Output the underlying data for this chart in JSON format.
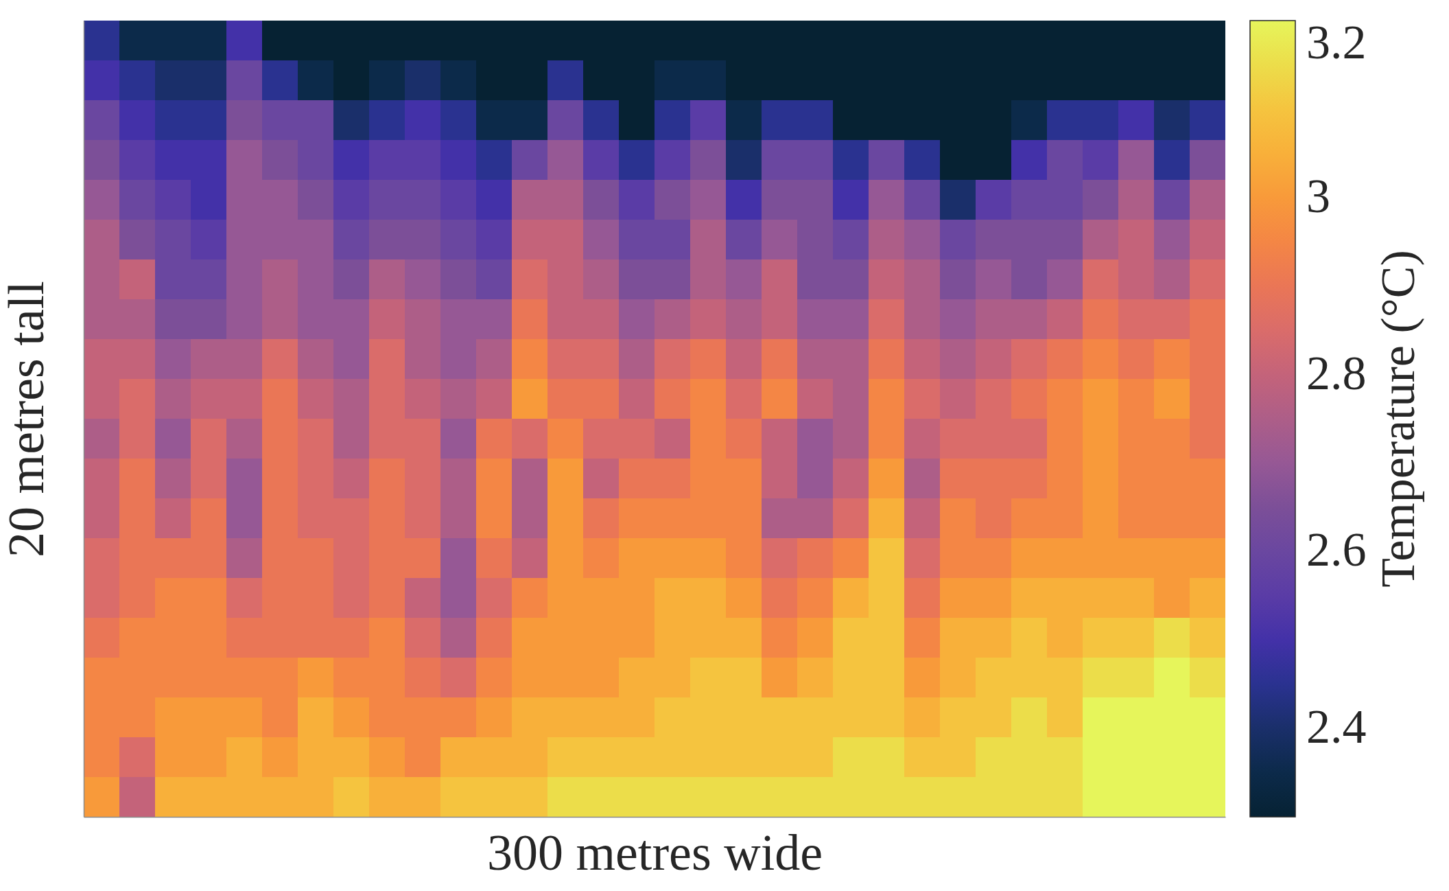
{
  "chart_data": {
    "type": "heatmap",
    "xlabel": "300 metres wide",
    "ylabel": "20 metres tall",
    "clabel": "Temperature (°C)",
    "tick_labels": false,
    "categories": [
      null,
      null,
      null,
      null,
      null,
      null,
      null,
      null,
      null,
      null,
      null,
      null,
      null,
      null,
      null,
      null,
      null,
      null,
      null,
      null,
      null,
      null,
      null,
      null,
      null,
      null,
      null,
      null,
      null,
      null,
      null,
      null
    ],
    "y_categories": [
      null,
      null,
      null,
      null,
      null,
      null,
      null,
      null,
      null,
      null,
      null,
      null,
      null,
      null,
      null,
      null,
      null,
      null,
      null,
      null
    ],
    "clim": [
      2.3,
      3.2
    ],
    "cticks": [
      2.4,
      2.6,
      2.8,
      3,
      3.2
    ],
    "cells": [
      [
        2.45,
        2.35,
        2.35,
        2.35,
        2.5,
        2.3,
        2.3,
        2.3,
        2.3,
        2.3,
        2.3,
        2.3,
        2.3,
        2.3,
        2.3,
        2.3,
        2.3,
        2.3,
        2.3,
        2.3,
        2.3,
        2.3,
        2.3,
        2.3,
        2.3,
        2.3,
        2.3,
        2.3,
        2.3,
        2.3,
        2.3,
        2.3
      ],
      [
        2.5,
        2.45,
        2.4,
        2.4,
        2.6,
        2.45,
        2.35,
        2.3,
        2.35,
        2.4,
        2.35,
        2.3,
        2.3,
        2.45,
        2.3,
        2.3,
        2.35,
        2.35,
        2.3,
        2.3,
        2.3,
        2.3,
        2.3,
        2.3,
        2.3,
        2.3,
        2.3,
        2.3,
        2.3,
        2.3,
        2.3,
        2.3
      ],
      [
        2.6,
        2.5,
        2.45,
        2.45,
        2.65,
        2.6,
        2.6,
        2.4,
        2.45,
        2.5,
        2.45,
        2.35,
        2.35,
        2.6,
        2.45,
        2.3,
        2.45,
        2.55,
        2.35,
        2.45,
        2.45,
        2.3,
        2.3,
        2.3,
        2.3,
        2.3,
        2.35,
        2.45,
        2.45,
        2.5,
        2.4,
        2.45
      ],
      [
        2.65,
        2.55,
        2.5,
        2.5,
        2.7,
        2.65,
        2.6,
        2.5,
        2.55,
        2.55,
        2.5,
        2.45,
        2.6,
        2.7,
        2.55,
        2.45,
        2.55,
        2.65,
        2.4,
        2.6,
        2.6,
        2.45,
        2.6,
        2.45,
        2.3,
        2.3,
        2.5,
        2.6,
        2.55,
        2.7,
        2.45,
        2.65
      ],
      [
        2.7,
        2.6,
        2.55,
        2.5,
        2.7,
        2.7,
        2.65,
        2.55,
        2.6,
        2.6,
        2.55,
        2.5,
        2.75,
        2.75,
        2.65,
        2.55,
        2.65,
        2.7,
        2.5,
        2.65,
        2.65,
        2.5,
        2.7,
        2.6,
        2.4,
        2.55,
        2.6,
        2.6,
        2.65,
        2.75,
        2.6,
        2.75
      ],
      [
        2.75,
        2.65,
        2.6,
        2.55,
        2.7,
        2.7,
        2.7,
        2.6,
        2.65,
        2.65,
        2.6,
        2.55,
        2.8,
        2.8,
        2.7,
        2.6,
        2.6,
        2.75,
        2.6,
        2.7,
        2.65,
        2.6,
        2.75,
        2.7,
        2.6,
        2.65,
        2.65,
        2.65,
        2.75,
        2.8,
        2.7,
        2.8
      ],
      [
        2.75,
        2.8,
        2.6,
        2.6,
        2.7,
        2.75,
        2.7,
        2.65,
        2.75,
        2.7,
        2.65,
        2.6,
        2.85,
        2.8,
        2.75,
        2.65,
        2.65,
        2.75,
        2.7,
        2.8,
        2.65,
        2.65,
        2.8,
        2.75,
        2.65,
        2.7,
        2.65,
        2.7,
        2.85,
        2.8,
        2.75,
        2.85
      ],
      [
        2.75,
        2.75,
        2.65,
        2.65,
        2.7,
        2.75,
        2.7,
        2.7,
        2.8,
        2.75,
        2.7,
        2.7,
        2.9,
        2.8,
        2.8,
        2.7,
        2.75,
        2.8,
        2.75,
        2.8,
        2.7,
        2.7,
        2.85,
        2.75,
        2.7,
        2.75,
        2.75,
        2.8,
        2.9,
        2.85,
        2.85,
        2.9
      ],
      [
        2.8,
        2.8,
        2.7,
        2.75,
        2.75,
        2.85,
        2.75,
        2.7,
        2.85,
        2.75,
        2.7,
        2.75,
        2.95,
        2.85,
        2.85,
        2.75,
        2.85,
        2.9,
        2.8,
        2.9,
        2.75,
        2.75,
        2.9,
        2.8,
        2.75,
        2.8,
        2.85,
        2.9,
        2.95,
        2.9,
        2.95,
        2.9
      ],
      [
        2.8,
        2.85,
        2.75,
        2.8,
        2.8,
        2.9,
        2.8,
        2.75,
        2.85,
        2.8,
        2.75,
        2.8,
        3.0,
        2.9,
        2.9,
        2.8,
        2.9,
        2.95,
        2.85,
        2.95,
        2.8,
        2.75,
        2.95,
        2.85,
        2.8,
        2.85,
        2.9,
        2.95,
        3.0,
        2.95,
        3.0,
        2.9
      ],
      [
        2.75,
        2.85,
        2.7,
        2.85,
        2.75,
        2.9,
        2.85,
        2.75,
        2.85,
        2.85,
        2.7,
        2.9,
        2.85,
        2.95,
        2.85,
        2.85,
        2.8,
        2.95,
        2.9,
        2.8,
        2.7,
        2.75,
        2.95,
        2.8,
        2.85,
        2.85,
        2.85,
        2.95,
        3.0,
        2.95,
        2.95,
        2.9
      ],
      [
        2.8,
        2.9,
        2.75,
        2.85,
        2.7,
        2.9,
        2.85,
        2.8,
        2.9,
        2.85,
        2.75,
        2.95,
        2.75,
        3.0,
        2.8,
        2.9,
        2.9,
        2.95,
        2.95,
        2.8,
        2.7,
        2.8,
        3.0,
        2.75,
        2.9,
        2.9,
        2.9,
        2.95,
        3.0,
        2.95,
        2.95,
        2.95
      ],
      [
        2.8,
        2.9,
        2.8,
        2.9,
        2.7,
        2.9,
        2.85,
        2.85,
        2.9,
        2.85,
        2.75,
        2.95,
        2.75,
        3.0,
        2.9,
        2.95,
        2.95,
        2.95,
        2.95,
        2.75,
        2.75,
        2.85,
        3.05,
        2.8,
        2.95,
        2.9,
        2.95,
        2.95,
        3.0,
        2.95,
        2.95,
        2.95
      ],
      [
        2.85,
        2.9,
        2.9,
        2.9,
        2.75,
        2.9,
        2.9,
        2.85,
        2.9,
        2.9,
        2.7,
        2.9,
        2.8,
        3.0,
        2.95,
        3.0,
        3.0,
        3.0,
        2.95,
        2.85,
        2.9,
        2.95,
        3.1,
        2.85,
        2.95,
        2.95,
        3.0,
        3.0,
        3.0,
        3.0,
        3.0,
        3.0
      ],
      [
        2.85,
        2.9,
        2.95,
        2.95,
        2.85,
        2.9,
        2.9,
        2.85,
        2.9,
        2.8,
        2.7,
        2.85,
        2.95,
        3.0,
        3.0,
        3.0,
        3.05,
        3.05,
        3.0,
        2.9,
        2.95,
        3.05,
        3.1,
        2.9,
        3.0,
        3.0,
        3.05,
        3.05,
        3.05,
        3.05,
        3.0,
        3.05
      ],
      [
        2.9,
        2.95,
        2.95,
        2.95,
        2.9,
        2.9,
        2.9,
        2.9,
        2.95,
        2.85,
        2.75,
        2.9,
        3.0,
        3.0,
        3.0,
        3.0,
        3.05,
        3.05,
        3.05,
        2.95,
        3.0,
        3.1,
        3.1,
        2.95,
        3.05,
        3.05,
        3.1,
        3.05,
        3.1,
        3.1,
        3.15,
        3.1
      ],
      [
        2.95,
        2.95,
        2.95,
        2.95,
        2.95,
        2.95,
        3.0,
        2.95,
        2.95,
        2.9,
        2.85,
        2.95,
        3.0,
        3.0,
        3.0,
        3.05,
        3.05,
        3.1,
        3.1,
        3.0,
        3.05,
        3.1,
        3.1,
        3.0,
        3.05,
        3.1,
        3.1,
        3.1,
        3.15,
        3.15,
        3.2,
        3.15
      ],
      [
        2.95,
        2.95,
        3.0,
        3.0,
        3.0,
        2.95,
        3.05,
        3.0,
        2.95,
        2.95,
        2.95,
        3.0,
        3.05,
        3.05,
        3.05,
        3.05,
        3.1,
        3.1,
        3.1,
        3.1,
        3.1,
        3.1,
        3.1,
        3.05,
        3.1,
        3.1,
        3.15,
        3.1,
        3.2,
        3.2,
        3.2,
        3.2
      ],
      [
        2.95,
        2.85,
        3.0,
        3.0,
        3.05,
        3.0,
        3.05,
        3.05,
        3.0,
        2.95,
        3.05,
        3.05,
        3.05,
        3.1,
        3.1,
        3.1,
        3.1,
        3.1,
        3.1,
        3.1,
        3.1,
        3.15,
        3.15,
        3.1,
        3.1,
        3.15,
        3.15,
        3.15,
        3.2,
        3.2,
        3.2,
        3.2
      ],
      [
        3.0,
        2.8,
        3.05,
        3.05,
        3.05,
        3.05,
        3.05,
        3.1,
        3.05,
        3.05,
        3.1,
        3.1,
        3.1,
        3.15,
        3.15,
        3.15,
        3.15,
        3.15,
        3.15,
        3.15,
        3.15,
        3.15,
        3.15,
        3.15,
        3.15,
        3.15,
        3.15,
        3.15,
        3.2,
        3.2,
        3.2,
        3.2
      ]
    ]
  }
}
